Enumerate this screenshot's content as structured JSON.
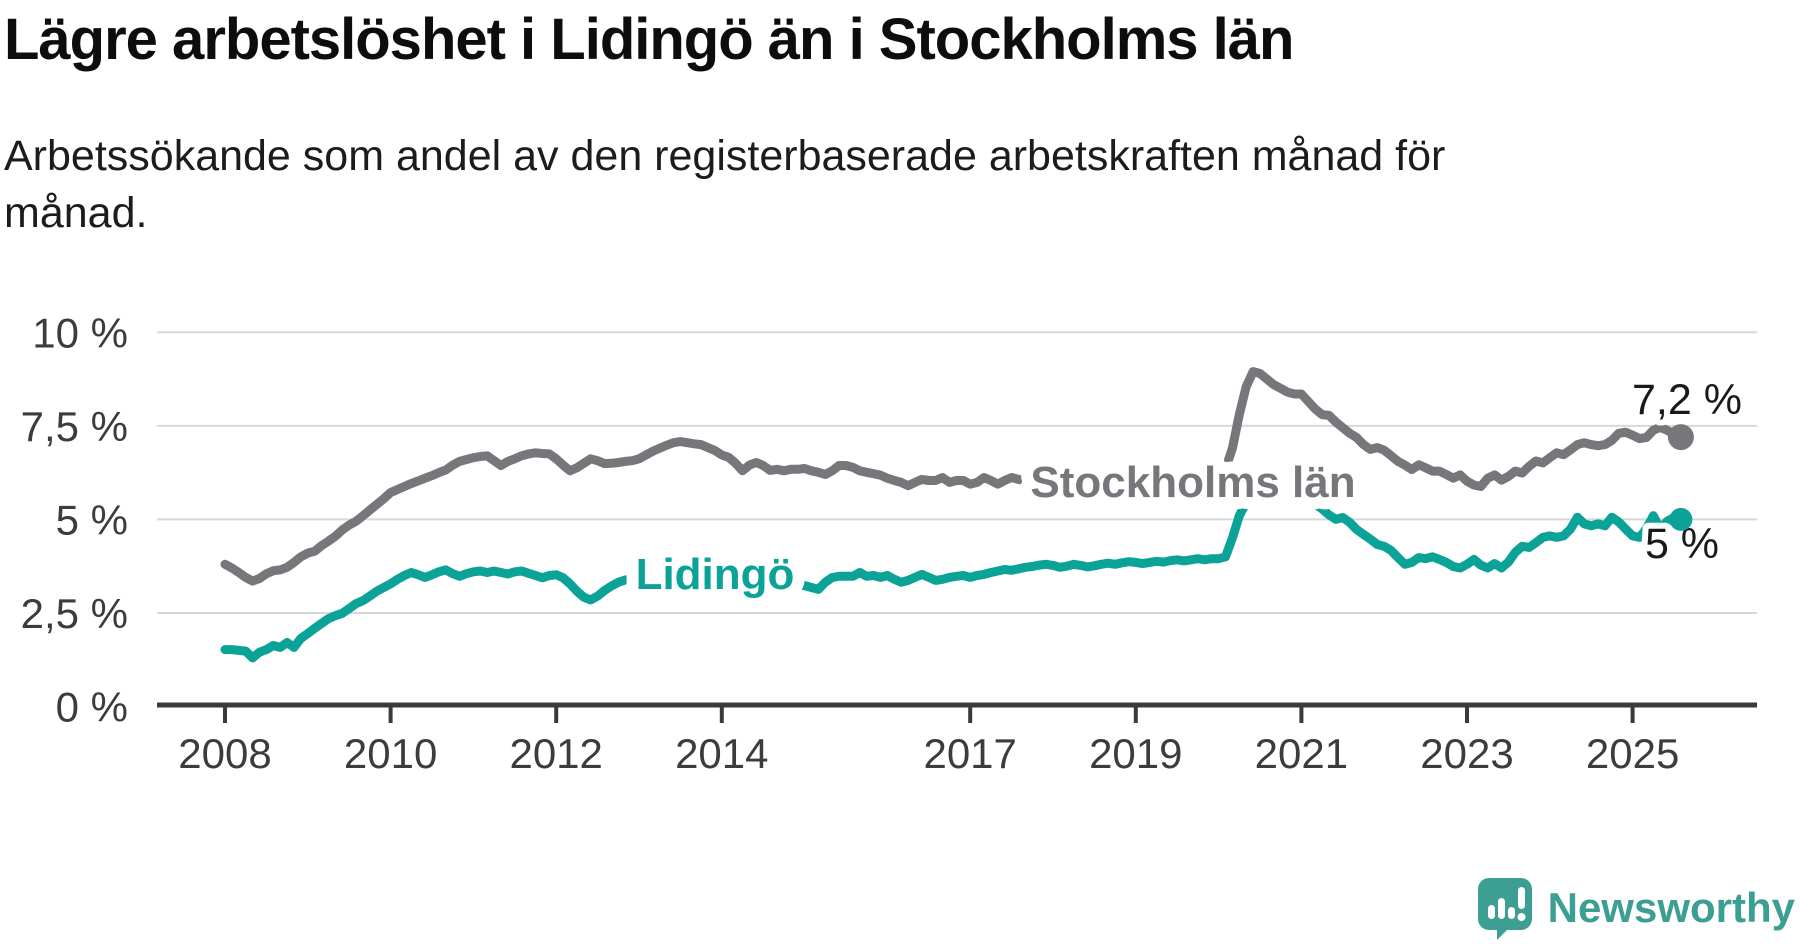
{
  "header": {
    "title": "Lägre arbetslöshet i Lidingö än i Stockholms län",
    "subtitle": "Arbetssökande som andel av den registerbaserade arbetskraften månad för månad.",
    "subtitle_lines": [
      "Arbetssökande som andel av den registerbaserade arbetskraften månad för",
      "månad."
    ]
  },
  "branding": {
    "logo_text": "Newsworthy",
    "logo_icon": "speech-bubble-bar-chart-icon",
    "logo_color": "#3d9e94"
  },
  "colors": {
    "background": "#ffffff",
    "grid": "#d8d8d8",
    "axis": "#3a3a3a",
    "tick_text": "#3c3c3c",
    "end_label_text": "#1a1a1a",
    "stockholm_gray": "#77777b",
    "lidingo_teal": "#0ba398"
  },
  "chart_data": {
    "type": "line",
    "title": "Lägre arbetslöshet i Lidingö än i Stockholms län",
    "subtitle": "Arbetssökande som andel av den registerbaserade arbetskraften månad för månad.",
    "unit": "%",
    "frequency": "monthly",
    "x_start": "2008-01",
    "x_end": "2025-08",
    "xlabel": "",
    "ylabel": "",
    "ylim": [
      0,
      10
    ],
    "grid": "horizontal-only",
    "legend": "inline-series-labels",
    "x_tick_years": [
      2008,
      2010,
      2012,
      2014,
      2017,
      2019,
      2021,
      2023,
      2025
    ],
    "y_ticks": [
      {
        "value": 10,
        "label": "10 %"
      },
      {
        "value": 7.5,
        "label": "7,5 %"
      },
      {
        "value": 5,
        "label": "5 %"
      },
      {
        "value": 2.5,
        "label": "2,5 %"
      },
      {
        "value": 0,
        "label": "0 %"
      }
    ],
    "series": [
      {
        "name": "Stockholms län",
        "color": "#77777b",
        "end_label": "7,2 %",
        "last_value": 7.2,
        "values": [
          3.8,
          3.7,
          3.58,
          3.45,
          3.35,
          3.42,
          3.55,
          3.63,
          3.65,
          3.72,
          3.85,
          4.0,
          4.1,
          4.15,
          4.3,
          4.42,
          4.55,
          4.72,
          4.85,
          4.95,
          5.1,
          5.25,
          5.4,
          5.55,
          5.72,
          5.8,
          5.88,
          5.96,
          6.03,
          6.1,
          6.17,
          6.25,
          6.32,
          6.45,
          6.55,
          6.6,
          6.65,
          6.68,
          6.7,
          6.57,
          6.44,
          6.55,
          6.62,
          6.7,
          6.75,
          6.78,
          6.76,
          6.75,
          6.62,
          6.45,
          6.3,
          6.38,
          6.5,
          6.62,
          6.57,
          6.49,
          6.5,
          6.52,
          6.55,
          6.57,
          6.62,
          6.72,
          6.82,
          6.9,
          6.98,
          7.05,
          7.08,
          7.05,
          7.02,
          7.0,
          6.92,
          6.84,
          6.72,
          6.66,
          6.5,
          6.3,
          6.45,
          6.52,
          6.44,
          6.31,
          6.34,
          6.3,
          6.34,
          6.34,
          6.36,
          6.3,
          6.26,
          6.2,
          6.3,
          6.44,
          6.44,
          6.39,
          6.3,
          6.26,
          6.22,
          6.18,
          6.1,
          6.04,
          5.99,
          5.9,
          5.99,
          6.07,
          6.04,
          6.04,
          6.12,
          5.99,
          6.04,
          6.04,
          5.94,
          5.99,
          6.12,
          6.04,
          5.94,
          6.04,
          6.12,
          6.07,
          6.04,
          6.0,
          6.02,
          6.05,
          6.05,
          6.0,
          5.98,
          6.02,
          6.05,
          6.02,
          6.0,
          6.03,
          6.06,
          6.04,
          6.06,
          6.1,
          6.08,
          6.05,
          6.08,
          6.12,
          6.1,
          6.12,
          6.15,
          6.12,
          6.15,
          6.18,
          6.2,
          6.22,
          6.25,
          6.35,
          6.9,
          7.8,
          8.55,
          8.95,
          8.9,
          8.75,
          8.6,
          8.5,
          8.4,
          8.35,
          8.35,
          8.15,
          7.95,
          7.8,
          7.78,
          7.6,
          7.45,
          7.3,
          7.19,
          7.0,
          6.87,
          6.92,
          6.85,
          6.7,
          6.55,
          6.45,
          6.33,
          6.46,
          6.38,
          6.29,
          6.29,
          6.2,
          6.1,
          6.19,
          6.02,
          5.92,
          5.88,
          6.1,
          6.19,
          6.05,
          6.15,
          6.29,
          6.24,
          6.42,
          6.56,
          6.51,
          6.65,
          6.78,
          6.73,
          6.86,
          7.0,
          7.05,
          7.0,
          6.97,
          7.0,
          7.11,
          7.3,
          7.33,
          7.25,
          7.16,
          7.19,
          7.38,
          7.46,
          7.38,
          7.28,
          7.2
        ]
      },
      {
        "name": "Lidingö",
        "color": "#0ba398",
        "end_label": "5 %",
        "last_value": 5.0,
        "values": [
          1.52,
          1.52,
          1.5,
          1.48,
          1.3,
          1.45,
          1.52,
          1.63,
          1.58,
          1.71,
          1.58,
          1.82,
          1.95,
          2.09,
          2.22,
          2.35,
          2.43,
          2.49,
          2.62,
          2.75,
          2.83,
          2.95,
          3.08,
          3.18,
          3.28,
          3.4,
          3.5,
          3.58,
          3.52,
          3.45,
          3.52,
          3.6,
          3.65,
          3.55,
          3.48,
          3.55,
          3.6,
          3.62,
          3.58,
          3.62,
          3.58,
          3.54,
          3.6,
          3.62,
          3.56,
          3.5,
          3.44,
          3.5,
          3.52,
          3.44,
          3.28,
          3.08,
          2.92,
          2.85,
          2.95,
          3.1,
          3.22,
          3.32,
          3.38,
          3.42,
          3.45,
          3.48,
          3.44,
          3.48,
          3.46,
          3.44,
          3.46,
          3.48,
          3.44,
          3.42,
          3.4,
          3.38,
          3.36,
          3.34,
          3.3,
          3.28,
          3.24,
          3.2,
          3.18,
          3.22,
          3.26,
          3.28,
          3.26,
          3.24,
          3.23,
          3.18,
          3.13,
          3.32,
          3.45,
          3.48,
          3.48,
          3.48,
          3.58,
          3.48,
          3.5,
          3.45,
          3.5,
          3.4,
          3.32,
          3.37,
          3.45,
          3.53,
          3.45,
          3.37,
          3.4,
          3.45,
          3.48,
          3.5,
          3.45,
          3.5,
          3.53,
          3.58,
          3.62,
          3.66,
          3.64,
          3.68,
          3.72,
          3.74,
          3.78,
          3.8,
          3.77,
          3.72,
          3.75,
          3.8,
          3.77,
          3.73,
          3.76,
          3.8,
          3.83,
          3.8,
          3.84,
          3.87,
          3.85,
          3.82,
          3.85,
          3.88,
          3.86,
          3.9,
          3.92,
          3.89,
          3.92,
          3.95,
          3.92,
          3.95,
          3.95,
          4.0,
          4.5,
          5.1,
          5.45,
          5.6,
          5.62,
          5.6,
          5.58,
          5.6,
          5.58,
          5.57,
          5.55,
          5.5,
          5.4,
          5.28,
          5.12,
          5.0,
          5.05,
          4.92,
          4.73,
          4.6,
          4.47,
          4.33,
          4.28,
          4.17,
          3.98,
          3.8,
          3.85,
          3.98,
          3.95,
          4.0,
          3.93,
          3.85,
          3.74,
          3.7,
          3.8,
          3.93,
          3.78,
          3.7,
          3.82,
          3.7,
          3.86,
          4.12,
          4.28,
          4.25,
          4.38,
          4.52,
          4.56,
          4.52,
          4.56,
          4.74,
          5.06,
          4.88,
          4.83,
          4.88,
          4.83,
          5.06,
          4.93,
          4.74,
          4.56,
          4.52,
          4.75,
          5.1,
          4.74,
          4.95,
          5.05,
          5.0
        ]
      }
    ]
  }
}
